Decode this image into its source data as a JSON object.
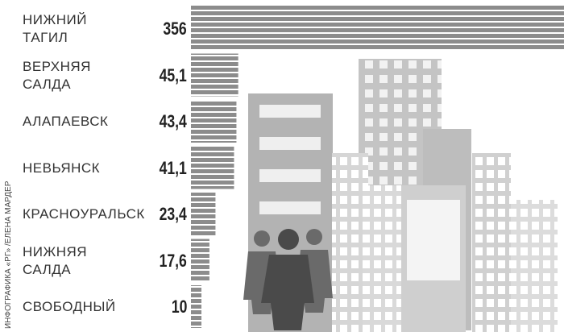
{
  "chart_data": {
    "type": "bar",
    "orientation": "horizontal",
    "categories": [
      "НИЖНИЙ\nТАГИЛ",
      "ВЕРХНЯЯ\nСАЛДА",
      "АЛАПАЕВСК",
      "НЕВЬЯНСК",
      "КРАСНОУРАЛЬСК",
      "НИЖНЯЯ\nСАЛДА",
      "СВОБОДНЫЙ"
    ],
    "values": [
      356,
      45.1,
      43.4,
      41.1,
      23.4,
      17.6,
      10
    ],
    "value_labels": [
      "356",
      "45,1",
      "43,4",
      "41,1",
      "23,4",
      "17,6",
      "10"
    ],
    "color": "#8c8c8c",
    "source": "ИНФОГРАФИКА «РГ» /ЕЛЕНА МАРДЕР"
  }
}
